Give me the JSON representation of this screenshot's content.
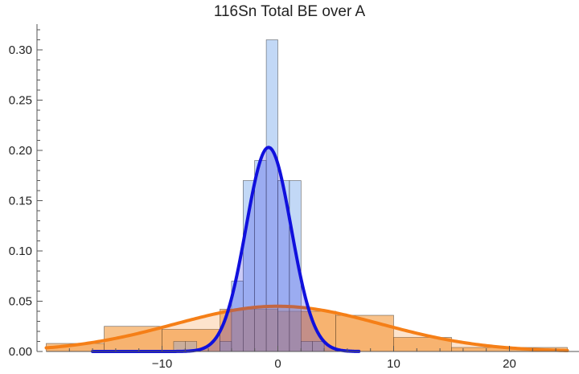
{
  "chart_data": {
    "type": "histogram",
    "title": "116Sn Total BE over A",
    "xlabel": "",
    "ylabel": "",
    "xlim": [
      -20,
      25
    ],
    "ylim": [
      0,
      0.33
    ],
    "x_ticks": [
      -10,
      0,
      10,
      20
    ],
    "x_tick_labels": [
      "−10",
      "0",
      "10",
      "20"
    ],
    "y_ticks": [
      0,
      0.05,
      0.1,
      0.15,
      0.2,
      0.25,
      0.3
    ],
    "y_tick_labels": [
      "0.00",
      "0.05",
      "0.10",
      "0.15",
      "0.20",
      "0.25",
      "0.30"
    ],
    "grid": false,
    "legend": "none",
    "histograms": [
      {
        "color": "#f39a3c",
        "fill_opacity": 0.6,
        "bins": [
          {
            "x0": -20,
            "x1": -15,
            "value": 0.008
          },
          {
            "x0": -15,
            "x1": -10,
            "value": 0.025
          },
          {
            "x0": -10,
            "x1": -5,
            "value": 0.022
          },
          {
            "x0": -5,
            "x1": 0,
            "value": 0.042
          },
          {
            "x0": 0,
            "x1": 5,
            "value": 0.04
          },
          {
            "x0": 5,
            "x1": 10,
            "value": 0.036
          },
          {
            "x0": 10,
            "x1": 15,
            "value": 0.014
          },
          {
            "x0": 15,
            "x1": 20,
            "value": 0.004
          },
          {
            "x0": 20,
            "x1": 25,
            "value": 0.004
          }
        ]
      },
      {
        "color": "#90b8ee",
        "fill_opacity": 0.55,
        "bins": [
          {
            "x0": -9,
            "x1": -8,
            "value": 0.01
          },
          {
            "x0": -8,
            "x1": -7,
            "value": 0.01
          },
          {
            "x0": -5,
            "x1": -4,
            "value": 0.01
          },
          {
            "x0": -4,
            "x1": -3,
            "value": 0.07
          },
          {
            "x0": -3,
            "x1": -2,
            "value": 0.17
          },
          {
            "x0": -2,
            "x1": -1,
            "value": 0.19
          },
          {
            "x0": -1,
            "x1": 0,
            "value": 0.31
          },
          {
            "x0": 0,
            "x1": 1,
            "value": 0.17
          },
          {
            "x0": 1,
            "x1": 2,
            "value": 0.17
          },
          {
            "x0": 2,
            "x1": 3,
            "value": 0.01
          },
          {
            "x0": 3,
            "x1": 4,
            "value": 0.01
          }
        ]
      }
    ],
    "curves": [
      {
        "color": "#f57f17",
        "type": "normal",
        "mean": 0,
        "sd": 8.9,
        "peak": 0.045,
        "x_range": [
          -20,
          25
        ]
      },
      {
        "color": "#1010dd",
        "type": "normal",
        "mean": -0.8,
        "sd": 1.95,
        "peak": 0.203,
        "x_range": [
          -16,
          7
        ]
      }
    ]
  }
}
